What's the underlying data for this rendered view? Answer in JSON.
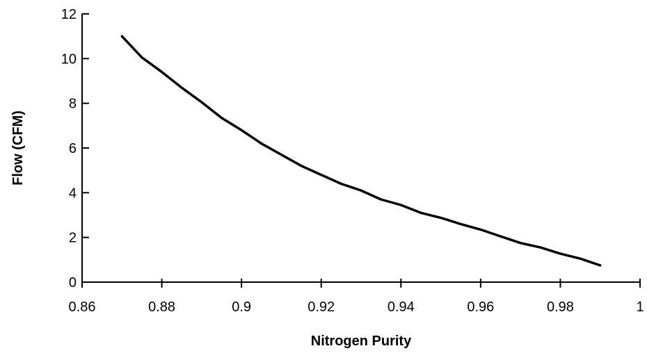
{
  "chart_data": {
    "type": "line",
    "title": "",
    "xlabel": "Nitrogen Purity",
    "ylabel": "Flow (CFM)",
    "xlim": [
      0.86,
      1
    ],
    "ylim": [
      0,
      12
    ],
    "x_ticks": [
      0.86,
      0.88,
      0.9,
      0.92,
      0.94,
      0.96,
      0.98,
      1
    ],
    "x_tick_labels": [
      "0.86",
      "0.88",
      "0.9",
      "0.92",
      "0.94",
      "0.96",
      "0.98",
      "1"
    ],
    "y_ticks": [
      0,
      2,
      4,
      6,
      8,
      10,
      12
    ],
    "y_tick_labels": [
      "0",
      "2",
      "4",
      "6",
      "8",
      "10",
      "12"
    ],
    "grid": false,
    "legend": "none",
    "line_color": "#000000",
    "series": [
      {
        "x": [
          0.87,
          0.875,
          0.88,
          0.885,
          0.89,
          0.895,
          0.9,
          0.905,
          0.91,
          0.915,
          0.92,
          0.925,
          0.93,
          0.935,
          0.94,
          0.945,
          0.95,
          0.955,
          0.96,
          0.965,
          0.97,
          0.975,
          0.98,
          0.985,
          0.99
        ],
        "y": [
          11.0,
          10.05,
          9.4,
          8.7,
          8.05,
          7.35,
          6.8,
          6.2,
          5.7,
          5.2,
          4.8,
          4.4,
          4.1,
          3.7,
          3.45,
          3.1,
          2.88,
          2.6,
          2.35,
          2.05,
          1.75,
          1.55,
          1.27,
          1.05,
          0.75
        ]
      }
    ]
  }
}
